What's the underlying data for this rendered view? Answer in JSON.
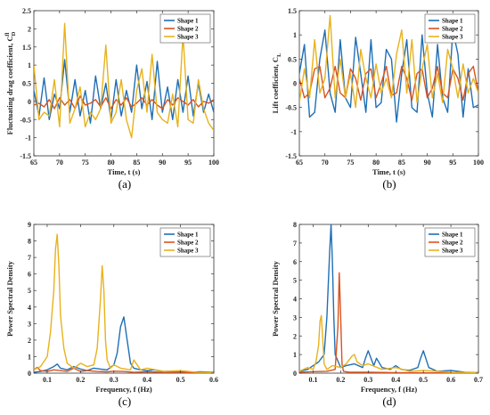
{
  "colors": {
    "shape1": "#1f6fb5",
    "shape2": "#d9531e",
    "shape3": "#e8b21c"
  },
  "chart_data": [
    {
      "id": "a",
      "type": "line",
      "panel_label": "(a)",
      "xlabel": "Time, t (s)",
      "ylabel": "Fluctuating drag coefficient, C",
      "ylabel_sub": "D",
      "ylabel_sup": "fl",
      "xlim": [
        65,
        100
      ],
      "ylim": [
        -1.5,
        2.5
      ],
      "xticks": [
        65,
        70,
        75,
        80,
        85,
        90,
        95,
        100
      ],
      "yticks": [
        -1.5,
        -1,
        -0.5,
        0,
        0.5,
        1,
        1.5,
        2,
        2.5
      ],
      "ytick_labels": [
        "-1.5",
        "-1",
        "-0.5",
        "0",
        "0.5",
        "1",
        "1.5",
        "2",
        "2.5"
      ],
      "legend": "top-right",
      "series": [
        {
          "name": "Shape 1",
          "color_key": "shape1",
          "x": [
            65,
            66,
            67,
            68,
            69,
            70,
            71,
            72,
            73,
            74,
            75,
            76,
            77,
            78,
            79,
            80,
            81,
            82,
            83,
            84,
            85,
            86,
            87,
            88,
            89,
            90,
            91,
            92,
            93,
            94,
            95,
            96,
            97,
            98,
            99,
            100
          ],
          "y": [
            0.3,
            -0.4,
            0.65,
            -0.5,
            0.2,
            -0.2,
            1.15,
            -0.3,
            0.6,
            -0.4,
            0.3,
            -0.6,
            0.7,
            -0.2,
            0.5,
            -0.5,
            0.6,
            -0.4,
            0.3,
            -0.3,
            1.0,
            -0.2,
            0.55,
            -0.5,
            1.1,
            -0.3,
            0.4,
            -0.5,
            0.6,
            -0.3,
            0.7,
            -0.4,
            0.5,
            -0.3,
            0.2,
            -0.3
          ]
        },
        {
          "name": "Shape 2",
          "color_key": "shape2",
          "x": [
            65,
            66,
            67,
            68,
            69,
            70,
            71,
            72,
            73,
            74,
            75,
            76,
            77,
            78,
            79,
            80,
            81,
            82,
            83,
            84,
            85,
            86,
            87,
            88,
            89,
            90,
            91,
            92,
            93,
            94,
            95,
            96,
            97,
            98,
            99,
            100
          ],
          "y": [
            -0.1,
            -0.05,
            -0.15,
            0.05,
            -0.2,
            0.1,
            -0.1,
            0.05,
            -0.2,
            0.15,
            -0.1,
            -0.05,
            0.05,
            -0.15,
            0.1,
            -0.2,
            0.05,
            -0.1,
            0.1,
            -0.15,
            -0.05,
            0.1,
            -0.1,
            0.05,
            -0.1,
            -0.2,
            0.05,
            -0.1,
            0.1,
            0.0,
            -0.1,
            0.05,
            -0.15,
            0.0,
            -0.05,
            0.05
          ]
        },
        {
          "name": "Shape 3",
          "color_key": "shape3",
          "x": [
            65,
            66,
            67,
            68,
            69,
            70,
            71,
            72,
            73,
            74,
            75,
            76,
            77,
            78,
            79,
            80,
            81,
            82,
            83,
            84,
            85,
            86,
            87,
            88,
            89,
            90,
            91,
            92,
            93,
            94,
            95,
            96,
            97,
            98,
            99,
            100
          ],
          "y": [
            1.0,
            -0.5,
            -0.3,
            -0.4,
            0.6,
            -0.7,
            2.15,
            -0.6,
            -0.2,
            0.4,
            -0.7,
            -0.3,
            -0.5,
            -0.2,
            1.55,
            -0.6,
            -0.3,
            0.6,
            -0.5,
            -1.0,
            0.3,
            0.9,
            -0.3,
            1.3,
            -0.3,
            -0.5,
            -0.6,
            0.2,
            -0.7,
            1.85,
            -0.5,
            -0.6,
            0.6,
            -0.2,
            -0.6,
            -0.8
          ]
        }
      ]
    },
    {
      "id": "b",
      "type": "line",
      "panel_label": "(b)",
      "xlabel": "Time, t (s)",
      "ylabel": "Lift coefficient, C",
      "ylabel_sub": "L",
      "ylabel_sup": "",
      "xlim": [
        65,
        100
      ],
      "ylim": [
        -1.5,
        1.5
      ],
      "xticks": [
        65,
        70,
        75,
        80,
        85,
        90,
        95,
        100
      ],
      "yticks": [
        -1.5,
        -1,
        -0.5,
        0,
        0.5,
        1,
        1.5
      ],
      "ytick_labels": [
        "-1.5",
        "-1",
        "-0.5",
        "0",
        "0.5",
        "1",
        "1.5"
      ],
      "legend": "top-right",
      "series": [
        {
          "name": "Shape 1",
          "color_key": "shape1",
          "x": [
            65,
            66,
            67,
            68,
            69,
            70,
            71,
            72,
            73,
            74,
            75,
            76,
            77,
            78,
            79,
            80,
            81,
            82,
            83,
            84,
            85,
            86,
            87,
            88,
            89,
            90,
            91,
            92,
            93,
            94,
            95,
            96,
            97,
            98,
            99,
            100
          ],
          "y": [
            0.2,
            0.8,
            -0.7,
            -0.6,
            0.5,
            1.1,
            -0.2,
            -0.6,
            0.9,
            -0.3,
            -0.5,
            0.95,
            0.2,
            -0.6,
            0.9,
            -0.5,
            -0.4,
            0.7,
            0.5,
            -0.8,
            0.2,
            0.9,
            -0.5,
            -0.6,
            1.0,
            -0.2,
            -0.7,
            0.8,
            -0.3,
            -0.6,
            1.1,
            0.6,
            -0.7,
            0.3,
            -0.5,
            -0.45
          ]
        },
        {
          "name": "Shape 2",
          "color_key": "shape2",
          "x": [
            65,
            66,
            67,
            68,
            69,
            70,
            71,
            72,
            73,
            74,
            75,
            76,
            77,
            78,
            79,
            80,
            81,
            82,
            83,
            84,
            85,
            86,
            87,
            88,
            89,
            90,
            91,
            92,
            93,
            94,
            95,
            96,
            97,
            98,
            99,
            100
          ],
          "y": [
            0.1,
            -0.3,
            -0.2,
            0.3,
            0.35,
            -0.3,
            -0.1,
            0.35,
            -0.2,
            -0.3,
            0.3,
            0.1,
            -0.35,
            0.2,
            0.3,
            -0.3,
            0.0,
            0.35,
            -0.25,
            -0.2,
            0.35,
            0.1,
            -0.35,
            0.2,
            0.3,
            -0.3,
            -0.1,
            0.35,
            -0.2,
            -0.3,
            0.3,
            0.1,
            -0.35,
            0.2,
            0.35,
            -0.2
          ]
        },
        {
          "name": "Shape 3",
          "color_key": "shape3",
          "x": [
            65,
            66,
            67,
            68,
            69,
            70,
            71,
            72,
            73,
            74,
            75,
            76,
            77,
            78,
            79,
            80,
            81,
            82,
            83,
            84,
            85,
            86,
            87,
            88,
            89,
            90,
            91,
            92,
            93,
            94,
            95,
            96,
            97,
            98,
            99,
            100
          ],
          "y": [
            -0.4,
            0.3,
            -0.3,
            0.9,
            -0.2,
            0.1,
            1.4,
            -0.3,
            0.5,
            -0.3,
            0.2,
            -0.5,
            0.7,
            0.1,
            -0.3,
            0.4,
            -0.2,
            0.1,
            -0.3,
            0.6,
            1.1,
            -0.2,
            0.9,
            -0.4,
            0.3,
            0.8,
            -0.3,
            0.2,
            -0.4,
            0.7,
            0.3,
            -0.3,
            0.4,
            -0.2,
            0.1,
            -0.2
          ]
        }
      ]
    },
    {
      "id": "c",
      "type": "line",
      "panel_label": "(c)",
      "xlabel": "Frequency, f (Hz)",
      "ylabel": "Power Spectral Density",
      "ylabel_sub": "",
      "ylabel_sup": "",
      "xlim": [
        0.06,
        0.6
      ],
      "ylim": [
        0,
        9
      ],
      "xticks": [
        0.1,
        0.2,
        0.3,
        0.4,
        0.5,
        0.6
      ],
      "yticks": [
        0,
        1,
        2,
        3,
        4,
        5,
        6,
        7,
        8,
        9
      ],
      "ytick_labels": [
        "0",
        "1",
        "2",
        "3",
        "4",
        "5",
        "6",
        "7",
        "8",
        "9"
      ],
      "legend": "top-right",
      "series": [
        {
          "name": "Shape 1",
          "color_key": "shape1",
          "x": [
            0.06,
            0.08,
            0.1,
            0.12,
            0.13,
            0.14,
            0.16,
            0.18,
            0.2,
            0.22,
            0.24,
            0.26,
            0.28,
            0.3,
            0.31,
            0.32,
            0.33,
            0.34,
            0.35,
            0.36,
            0.38,
            0.4,
            0.42,
            0.45,
            0.48,
            0.5,
            0.53,
            0.56,
            0.6
          ],
          "y": [
            0.05,
            0.1,
            0.2,
            0.4,
            0.55,
            0.3,
            0.2,
            0.4,
            0.25,
            0.15,
            0.3,
            0.25,
            0.2,
            0.5,
            1.2,
            2.8,
            3.4,
            2.0,
            0.6,
            0.3,
            0.2,
            0.15,
            0.2,
            0.1,
            0.12,
            0.1,
            0.05,
            0.08,
            0.05
          ]
        },
        {
          "name": "Shape 2",
          "color_key": "shape2",
          "x": [
            0.06,
            0.07,
            0.08,
            0.1,
            0.12,
            0.14,
            0.16,
            0.18,
            0.2,
            0.22,
            0.25,
            0.28,
            0.3,
            0.33,
            0.36,
            0.4,
            0.45,
            0.5,
            0.55,
            0.6
          ],
          "y": [
            0.2,
            0.35,
            0.15,
            0.1,
            0.2,
            0.15,
            0.1,
            0.3,
            0.1,
            0.15,
            0.1,
            0.08,
            0.12,
            0.1,
            0.05,
            0.08,
            0.05,
            0.04,
            0.03,
            0.02
          ]
        },
        {
          "name": "Shape 3",
          "color_key": "shape3",
          "x": [
            0.06,
            0.08,
            0.1,
            0.11,
            0.12,
            0.125,
            0.13,
            0.135,
            0.14,
            0.15,
            0.16,
            0.18,
            0.2,
            0.22,
            0.24,
            0.25,
            0.26,
            0.265,
            0.27,
            0.275,
            0.28,
            0.29,
            0.3,
            0.32,
            0.35,
            0.36,
            0.38,
            0.4,
            0.45,
            0.5,
            0.55,
            0.6
          ],
          "y": [
            0.2,
            0.4,
            1.0,
            2.5,
            5.0,
            7.5,
            8.4,
            6.5,
            3.5,
            1.5,
            0.6,
            0.3,
            0.6,
            0.4,
            0.5,
            1.5,
            4.5,
            6.5,
            5.0,
            2.0,
            0.8,
            0.3,
            0.5,
            0.3,
            0.2,
            0.8,
            0.2,
            0.3,
            0.1,
            0.15,
            0.05,
            0.03
          ]
        }
      ]
    },
    {
      "id": "d",
      "type": "line",
      "panel_label": "(d)",
      "xlabel": "Frequency, f (Hz)",
      "ylabel": "Power Spectral Density",
      "ylabel_sub": "",
      "ylabel_sup": "",
      "xlim": [
        0.05,
        0.7
      ],
      "ylim": [
        0,
        8
      ],
      "xticks": [
        0.1,
        0.2,
        0.3,
        0.4,
        0.5,
        0.6,
        0.7
      ],
      "yticks": [
        0,
        1,
        2,
        3,
        4,
        5,
        6,
        7,
        8
      ],
      "ytick_labels": [
        "0",
        "1",
        "2",
        "3",
        "4",
        "5",
        "6",
        "7",
        "8"
      ],
      "legend": "top-right",
      "series": [
        {
          "name": "Shape 1",
          "color_key": "shape1",
          "x": [
            0.05,
            0.08,
            0.1,
            0.12,
            0.14,
            0.15,
            0.16,
            0.165,
            0.17,
            0.175,
            0.18,
            0.2,
            0.22,
            0.25,
            0.28,
            0.29,
            0.3,
            0.32,
            0.33,
            0.35,
            0.38,
            0.4,
            0.42,
            0.45,
            0.48,
            0.49,
            0.5,
            0.52,
            0.55,
            0.6,
            0.65,
            0.7
          ],
          "y": [
            0.1,
            0.2,
            0.4,
            0.6,
            1.0,
            3.0,
            6.5,
            8.0,
            6.0,
            3.0,
            1.0,
            0.3,
            0.4,
            0.5,
            0.3,
            0.8,
            1.2,
            0.4,
            0.8,
            0.3,
            0.2,
            0.4,
            0.2,
            0.15,
            0.3,
            0.8,
            1.2,
            0.3,
            0.1,
            0.15,
            0.05,
            0.03
          ]
        },
        {
          "name": "Shape 2",
          "color_key": "shape2",
          "x": [
            0.05,
            0.1,
            0.15,
            0.18,
            0.19,
            0.195,
            0.2,
            0.205,
            0.21,
            0.23,
            0.3,
            0.4,
            0.5,
            0.6,
            0.7
          ],
          "y": [
            0.05,
            0.08,
            0.1,
            0.2,
            2.5,
            5.4,
            3.0,
            0.5,
            0.1,
            0.05,
            0.05,
            0.03,
            0.02,
            0.01,
            0.01
          ]
        },
        {
          "name": "Shape 3",
          "color_key": "shape3",
          "x": [
            0.05,
            0.08,
            0.1,
            0.11,
            0.12,
            0.125,
            0.13,
            0.135,
            0.14,
            0.15,
            0.17,
            0.2,
            0.22,
            0.24,
            0.25,
            0.26,
            0.28,
            0.3,
            0.35,
            0.4,
            0.45,
            0.5,
            0.6,
            0.7
          ],
          "y": [
            0.1,
            0.3,
            0.2,
            0.6,
            1.5,
            2.8,
            3.1,
            1.8,
            0.5,
            0.2,
            0.4,
            0.3,
            0.5,
            0.9,
            1.0,
            0.6,
            0.4,
            0.5,
            0.2,
            0.3,
            0.1,
            0.15,
            0.05,
            0.03
          ]
        }
      ]
    }
  ]
}
